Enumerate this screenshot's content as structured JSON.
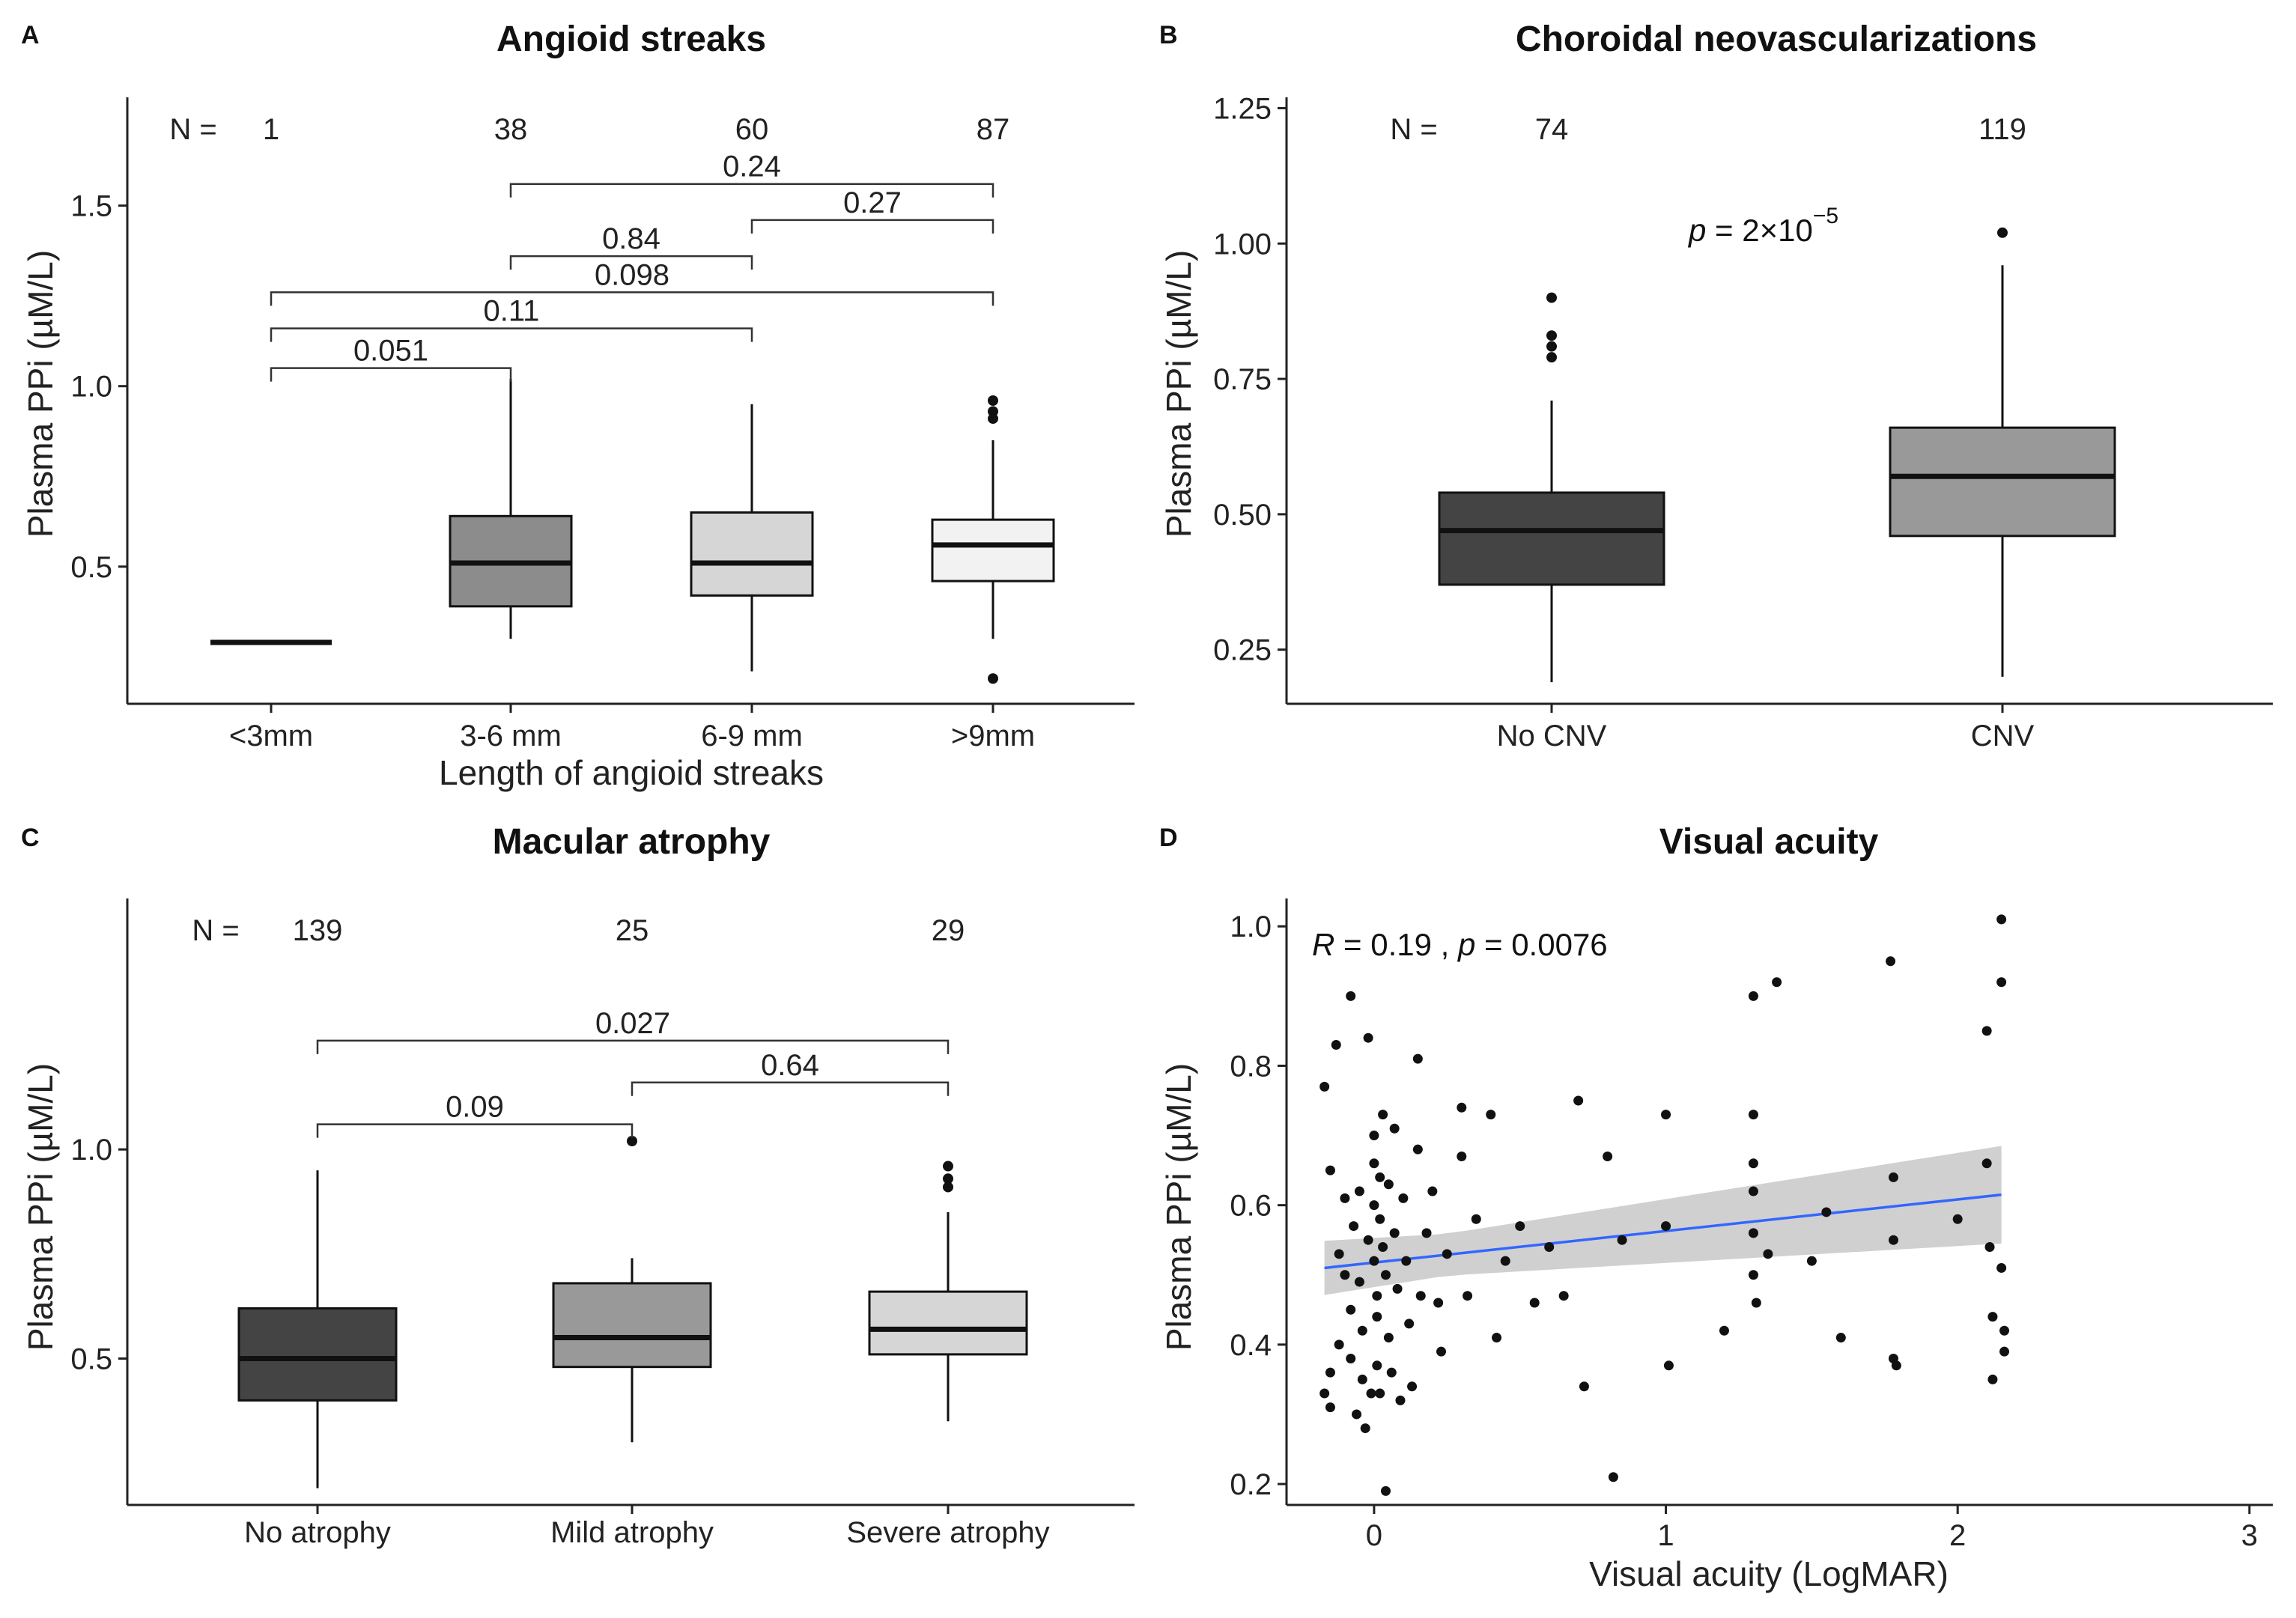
{
  "chart_data": [
    {
      "panel": "A",
      "type": "box",
      "title": "Angioid streaks",
      "xlabel": "Length of angioid streaks",
      "ylabel": "Plasma PPi (µM/L)",
      "ylim": [
        0.12,
        1.8
      ],
      "yticks": [
        0.5,
        1.0,
        1.5
      ],
      "ytick_labels": [
        "0.5",
        "1.0",
        "1.5"
      ],
      "n_label": "N =",
      "categories": [
        "<3mm",
        "3-6 mm",
        "6-9 mm",
        ">9mm"
      ],
      "n": [
        "1",
        "38",
        "60",
        "87"
      ],
      "colors": [
        "#333333",
        "#8c8c8c",
        "#d6d6d6",
        "#f2f2f2"
      ],
      "boxes": [
        {
          "min": 0.29,
          "q1": 0.29,
          "median": 0.29,
          "q3": 0.29,
          "max": 0.29,
          "outliers": []
        },
        {
          "min": 0.3,
          "q1": 0.39,
          "median": 0.51,
          "q3": 0.64,
          "max": 1.02,
          "outliers": []
        },
        {
          "min": 0.21,
          "q1": 0.42,
          "median": 0.51,
          "q3": 0.65,
          "max": 0.95,
          "outliers": []
        },
        {
          "min": 0.3,
          "q1": 0.46,
          "median": 0.56,
          "q3": 0.63,
          "max": 0.85,
          "outliers": [
            0.96,
            0.93,
            0.91,
            0.19
          ]
        }
      ],
      "comparisons": [
        {
          "from": 0,
          "to": 1,
          "y": 1.05,
          "label": "0.051"
        },
        {
          "from": 0,
          "to": 2,
          "y": 1.16,
          "label": "0.11"
        },
        {
          "from": 0,
          "to": 3,
          "y": 1.26,
          "label": "0.098"
        },
        {
          "from": 1,
          "to": 2,
          "y": 1.36,
          "label": "0.84"
        },
        {
          "from": 2,
          "to": 3,
          "y": 1.46,
          "label": "0.27"
        },
        {
          "from": 1,
          "to": 3,
          "y": 1.56,
          "label": "0.24"
        }
      ]
    },
    {
      "panel": "B",
      "type": "box",
      "title": "Choroidal neovascularizations",
      "xlabel": "",
      "ylabel": "Plasma PPi (µM/L)",
      "ylim": [
        0.15,
        1.27
      ],
      "yticks": [
        0.25,
        0.5,
        0.75,
        1.0,
        1.25
      ],
      "ytick_labels": [
        "0.25",
        "0.50",
        "0.75",
        "1.00",
        "1.25"
      ],
      "n_label": "N =",
      "categories": [
        "No CNV",
        "CNV"
      ],
      "n": [
        "74",
        "119"
      ],
      "colors": [
        "#444444",
        "#999999"
      ],
      "boxes": [
        {
          "min": 0.19,
          "q1": 0.37,
          "median": 0.47,
          "q3": 0.54,
          "max": 0.71,
          "outliers": [
            0.9,
            0.83,
            0.81,
            0.79
          ]
        },
        {
          "min": 0.2,
          "q1": 0.46,
          "median": 0.57,
          "q3": 0.66,
          "max": 0.96,
          "outliers": [
            1.02
          ]
        }
      ],
      "p_prefix": "p",
      "p_text": " = 2×10",
      "p_exp": "−5"
    },
    {
      "panel": "C",
      "type": "box",
      "title": "Macular atrophy",
      "xlabel": "",
      "ylabel": "Plasma PPi (µM/L)",
      "ylim": [
        0.15,
        1.6
      ],
      "yticks": [
        0.5,
        1.0
      ],
      "ytick_labels": [
        "0.5",
        "1.0"
      ],
      "n_label": "N =",
      "categories": [
        "No atrophy",
        "Mild atrophy",
        "Severe atrophy"
      ],
      "n": [
        "139",
        "25",
        "29"
      ],
      "colors": [
        "#444444",
        "#999999",
        "#d6d6d6"
      ],
      "boxes": [
        {
          "min": 0.19,
          "q1": 0.4,
          "median": 0.5,
          "q3": 0.62,
          "max": 0.95,
          "outliers": []
        },
        {
          "min": 0.3,
          "q1": 0.48,
          "median": 0.55,
          "q3": 0.68,
          "max": 0.74,
          "outliers": [
            1.02
          ]
        },
        {
          "min": 0.35,
          "q1": 0.51,
          "median": 0.57,
          "q3": 0.66,
          "max": 0.85,
          "outliers": [
            0.96,
            0.93,
            0.91
          ]
        }
      ],
      "comparisons": [
        {
          "from": 0,
          "to": 1,
          "y": 1.06,
          "label": "0.09"
        },
        {
          "from": 1,
          "to": 2,
          "y": 1.16,
          "label": "0.64"
        },
        {
          "from": 0,
          "to": 2,
          "y": 1.26,
          "label": "0.027"
        }
      ]
    },
    {
      "panel": "D",
      "type": "scatter",
      "title": "Visual acuity",
      "xlabel": "Visual acuity (LogMAR)",
      "ylabel": "Plasma PPi (µM/L)",
      "xlim": [
        -0.3,
        3.08
      ],
      "ylim": [
        0.17,
        1.04
      ],
      "xticks": [
        0,
        1,
        2,
        3
      ],
      "xtick_labels": [
        "0",
        "1",
        "2",
        "3"
      ],
      "yticks": [
        0.2,
        0.4,
        0.6,
        0.8,
        1.0
      ],
      "ytick_labels": [
        "0.2",
        "0.4",
        "0.6",
        "0.8",
        "1.0"
      ],
      "r_prefix": "R",
      "r_text": " = 0.19 , ",
      "p_prefix": "p",
      "p_text": " = 0.0076",
      "fit": {
        "x0": -0.17,
        "y0": 0.51,
        "x1": 2.15,
        "y1": 0.615,
        "ci_start": 0.03,
        "ci_end": 0.07
      },
      "line_color": "#3366ff",
      "band_color": "#c8c8c8",
      "points": [
        [
          -0.17,
          0.77
        ],
        [
          -0.15,
          0.65
        ],
        [
          -0.15,
          0.36
        ],
        [
          -0.17,
          0.33
        ],
        [
          -0.15,
          0.31
        ],
        [
          -0.13,
          0.83
        ],
        [
          -0.12,
          0.53
        ],
        [
          -0.12,
          0.4
        ],
        [
          -0.1,
          0.61
        ],
        [
          -0.1,
          0.5
        ],
        [
          -0.08,
          0.9
        ],
        [
          -0.08,
          0.45
        ],
        [
          -0.08,
          0.38
        ],
        [
          -0.07,
          0.57
        ],
        [
          -0.06,
          0.3
        ],
        [
          -0.05,
          0.62
        ],
        [
          -0.05,
          0.49
        ],
        [
          -0.04,
          0.42
        ],
        [
          -0.04,
          0.35
        ],
        [
          -0.03,
          0.28
        ],
        [
          -0.02,
          0.84
        ],
        [
          -0.02,
          0.55
        ],
        [
          -0.01,
          0.33
        ],
        [
          0.0,
          0.7
        ],
        [
          0.0,
          0.66
        ],
        [
          0.0,
          0.6
        ],
        [
          0.0,
          0.52
        ],
        [
          0.01,
          0.47
        ],
        [
          0.01,
          0.44
        ],
        [
          0.01,
          0.37
        ],
        [
          0.02,
          0.64
        ],
        [
          0.02,
          0.58
        ],
        [
          0.02,
          0.33
        ],
        [
          0.03,
          0.73
        ],
        [
          0.03,
          0.54
        ],
        [
          0.04,
          0.19
        ],
        [
          0.04,
          0.5
        ],
        [
          0.05,
          0.63
        ],
        [
          0.05,
          0.41
        ],
        [
          0.06,
          0.36
        ],
        [
          0.07,
          0.71
        ],
        [
          0.07,
          0.56
        ],
        [
          0.08,
          0.48
        ],
        [
          0.09,
          0.32
        ],
        [
          0.1,
          0.61
        ],
        [
          0.11,
          0.52
        ],
        [
          0.12,
          0.43
        ],
        [
          0.13,
          0.34
        ],
        [
          0.15,
          0.68
        ],
        [
          0.15,
          0.81
        ],
        [
          0.16,
          0.47
        ],
        [
          0.18,
          0.56
        ],
        [
          0.2,
          0.62
        ],
        [
          0.22,
          0.46
        ],
        [
          0.23,
          0.39
        ],
        [
          0.25,
          0.53
        ],
        [
          0.3,
          0.67
        ],
        [
          0.3,
          0.74
        ],
        [
          0.32,
          0.47
        ],
        [
          0.35,
          0.58
        ],
        [
          0.4,
          0.73
        ],
        [
          0.42,
          0.41
        ],
        [
          0.45,
          0.52
        ],
        [
          0.5,
          0.57
        ],
        [
          0.55,
          0.46
        ],
        [
          0.6,
          0.54
        ],
        [
          0.65,
          0.47
        ],
        [
          0.7,
          0.75
        ],
        [
          0.72,
          0.34
        ],
        [
          0.8,
          0.67
        ],
        [
          0.82,
          0.21
        ],
        [
          0.85,
          0.55
        ],
        [
          1.0,
          0.57
        ],
        [
          1.0,
          0.73
        ],
        [
          1.01,
          0.37
        ],
        [
          1.3,
          0.9
        ],
        [
          1.3,
          0.73
        ],
        [
          1.3,
          0.66
        ],
        [
          1.3,
          0.62
        ],
        [
          1.3,
          0.56
        ],
        [
          1.3,
          0.5
        ],
        [
          1.31,
          0.46
        ],
        [
          1.35,
          0.53
        ],
        [
          1.38,
          0.92
        ],
        [
          1.5,
          0.52
        ],
        [
          1.55,
          0.59
        ],
        [
          1.6,
          0.41
        ],
        [
          1.77,
          0.95
        ],
        [
          1.78,
          0.64
        ],
        [
          1.78,
          0.55
        ],
        [
          1.78,
          0.38
        ],
        [
          1.79,
          0.37
        ],
        [
          2.1,
          0.85
        ],
        [
          2.1,
          0.66
        ],
        [
          2.11,
          0.54
        ],
        [
          2.12,
          0.44
        ],
        [
          2.12,
          0.35
        ],
        [
          2.15,
          1.01
        ],
        [
          2.15,
          0.92
        ],
        [
          2.15,
          0.51
        ],
        [
          2.16,
          0.42
        ],
        [
          2.16,
          0.39
        ],
        [
          2.0,
          0.58
        ],
        [
          1.2,
          0.42
        ]
      ]
    }
  ]
}
